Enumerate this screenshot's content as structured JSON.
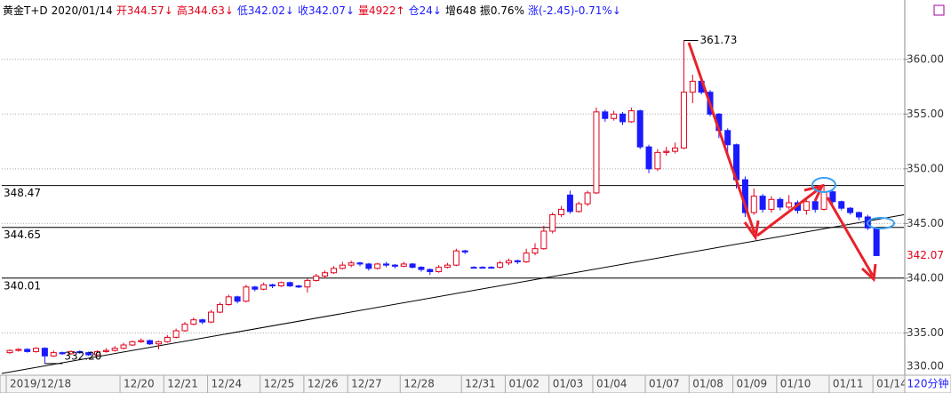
{
  "chart_data": {
    "type": "candlestick",
    "header": [
      {
        "text": "黄金T+D",
        "color": "#000000"
      },
      {
        "text": "2020/01/14",
        "color": "#000000"
      },
      {
        "text": "开344.57↓",
        "color": "#e0001a"
      },
      {
        "text": "高344.63↓",
        "color": "#e0001a"
      },
      {
        "text": "低342.02↓",
        "color": "#1a1aff"
      },
      {
        "text": "收342.07↓",
        "color": "#1a1aff"
      },
      {
        "text": "量4922↑",
        "color": "#e0001a"
      },
      {
        "text": "仓24↓",
        "color": "#1a1aff"
      },
      {
        "text": "增648",
        "color": "#000000"
      },
      {
        "text": "振0.76%",
        "color": "#000000"
      },
      {
        "text": "涨(-2.45)-0.71%↓",
        "color": "#1a1aff"
      }
    ],
    "period": "120分钟",
    "up_color": "#e0001a",
    "down_color": "#1a1aff",
    "categories": [
      "2019/12/18",
      null,
      null,
      null,
      null,
      null,
      null,
      null,
      null,
      null,
      null,
      null,
      null,
      "12/20",
      null,
      null,
      null,
      null,
      "12/21",
      null,
      null,
      null,
      null,
      "12/24",
      null,
      null,
      null,
      null,
      null,
      "12/25",
      null,
      null,
      null,
      null,
      "12/26",
      null,
      null,
      null,
      null,
      "12/27",
      null,
      null,
      null,
      null,
      null,
      "12/28",
      null,
      null,
      null,
      null,
      null,
      null,
      "12/31",
      null,
      null,
      null,
      null,
      "01/02",
      null,
      null,
      null,
      null,
      "01/03",
      null,
      null,
      null,
      null,
      "01/04",
      null,
      null,
      null,
      null,
      null,
      "01/07",
      null,
      null,
      null,
      null,
      "01/08",
      null,
      null,
      null,
      null,
      "01/09",
      null,
      null,
      null,
      null,
      "01/10",
      null,
      null,
      null,
      null,
      null,
      "01/11",
      null,
      null,
      null,
      null,
      "01/14"
    ],
    "open": [
      333.2,
      333.4,
      333.5,
      333.3,
      333.6,
      332.9,
      333.2,
      333.1,
      333.3,
      333.2,
      333.0,
      333.3,
      333.4,
      333.6,
      333.9,
      334.2,
      334.3,
      334.0,
      334.2,
      334.6,
      335.2,
      335.8,
      336.2,
      336.0,
      336.9,
      337.6,
      338.3,
      337.9,
      339.2,
      339.0,
      339.4,
      339.3,
      339.6,
      339.3,
      339.2,
      339.8,
      340.2,
      340.5,
      340.9,
      341.2,
      341.4,
      341.3,
      340.9,
      341.3,
      341.2,
      341.1,
      341.3,
      341.0,
      340.8,
      340.6,
      341.0,
      341.2,
      342.5,
      341.0,
      341.0,
      341.0,
      341.0,
      341.4,
      341.6,
      341.5,
      342.3,
      342.7,
      344.3,
      345.8,
      347.6,
      346.1,
      346.8,
      347.8,
      355.2,
      354.6,
      355.0,
      354.3,
      355.3,
      352.0,
      350.0,
      351.5,
      351.6,
      351.9,
      357.0,
      358.0,
      357.0,
      355.0,
      353.5,
      352.2,
      349.0,
      346.0,
      347.5,
      346.3,
      347.2,
      346.5,
      346.9,
      346.2,
      347.0,
      346.3,
      347.9,
      347.0,
      346.4,
      346.0,
      345.6,
      344.57
    ],
    "high": [
      333.5,
      333.6,
      333.6,
      333.7,
      333.7,
      333.4,
      333.3,
      333.4,
      333.4,
      333.3,
      333.4,
      333.6,
      333.8,
      334.1,
      334.3,
      334.5,
      334.4,
      334.3,
      334.8,
      335.4,
      336.0,
      336.4,
      336.3,
      337.1,
      337.8,
      338.5,
      338.4,
      339.4,
      339.3,
      339.6,
      339.5,
      339.7,
      339.7,
      339.4,
      340.0,
      340.4,
      340.7,
      341.1,
      341.5,
      341.6,
      341.5,
      341.4,
      341.4,
      341.5,
      341.3,
      341.5,
      341.4,
      341.1,
      340.9,
      341.2,
      341.4,
      342.7,
      342.6,
      341.1,
      341.1,
      341.1,
      341.6,
      341.8,
      341.7,
      342.7,
      343.2,
      344.8,
      346.0,
      346.6,
      348.0,
      347.0,
      348.0,
      355.6,
      355.4,
      355.3,
      355.2,
      355.6,
      355.4,
      352.2,
      351.8,
      352.0,
      352.4,
      361.73,
      358.6,
      358.3,
      357.2,
      355.1,
      353.7,
      352.3,
      349.3,
      348.2,
      347.7,
      347.5,
      347.4,
      347.6,
      347.1,
      347.3,
      347.2,
      348.5,
      348.0,
      347.1,
      346.5,
      346.1,
      345.8,
      344.63
    ],
    "low": [
      333.1,
      333.3,
      333.2,
      333.2,
      332.2,
      332.8,
      333.0,
      333.0,
      333.1,
      332.9,
      332.9,
      333.2,
      333.3,
      333.5,
      333.8,
      334.1,
      333.9,
      333.5,
      334.1,
      334.5,
      335.1,
      335.7,
      335.8,
      335.9,
      336.8,
      337.5,
      337.7,
      337.8,
      338.8,
      338.9,
      339.1,
      339.2,
      339.2,
      339.1,
      338.7,
      339.7,
      340.0,
      340.4,
      340.8,
      341.0,
      341.1,
      340.7,
      340.8,
      341.0,
      340.9,
      341.0,
      340.9,
      340.6,
      340.3,
      340.5,
      340.9,
      341.1,
      342.2,
      340.9,
      340.9,
      340.9,
      340.9,
      341.2,
      341.3,
      341.4,
      342.1,
      342.6,
      344.1,
      345.6,
      345.9,
      346.0,
      346.6,
      347.7,
      354.3,
      354.4,
      354.0,
      354.2,
      351.8,
      349.6,
      349.8,
      351.2,
      351.4,
      351.8,
      356.0,
      356.8,
      354.8,
      352.8,
      351.5,
      348.2,
      345.6,
      345.8,
      346.0,
      346.0,
      346.2,
      346.3,
      345.9,
      345.8,
      346.0,
      346.2,
      346.8,
      346.2,
      345.8,
      345.3,
      344.4,
      342.02
    ],
    "close": [
      333.4,
      333.5,
      333.3,
      333.6,
      332.9,
      333.2,
      333.1,
      333.3,
      333.2,
      333.0,
      333.3,
      333.4,
      333.6,
      333.9,
      334.2,
      334.3,
      334.0,
      334.2,
      334.6,
      335.2,
      335.8,
      336.2,
      336.0,
      336.9,
      337.6,
      338.3,
      337.9,
      339.2,
      339.0,
      339.4,
      339.3,
      339.6,
      339.3,
      339.2,
      339.8,
      340.2,
      340.5,
      340.9,
      341.2,
      341.4,
      341.3,
      340.9,
      341.3,
      341.2,
      341.1,
      341.3,
      341.0,
      340.8,
      340.6,
      341.0,
      341.2,
      342.5,
      342.4,
      341.0,
      341.0,
      341.0,
      341.4,
      341.6,
      341.5,
      342.3,
      342.7,
      344.3,
      345.8,
      346.3,
      346.1,
      346.8,
      347.8,
      355.2,
      354.6,
      355.0,
      354.3,
      355.3,
      352.0,
      350.0,
      351.5,
      351.6,
      351.9,
      357.0,
      358.0,
      357.0,
      355.0,
      353.5,
      352.2,
      349.0,
      346.0,
      347.5,
      346.3,
      347.2,
      346.5,
      346.9,
      346.2,
      347.0,
      346.3,
      347.9,
      347.0,
      346.4,
      346.0,
      345.6,
      344.6,
      342.07
    ],
    "ylim": [
      330,
      363.8
    ],
    "yticks": [
      {
        "value": 330,
        "label": "330.00"
      },
      {
        "value": 335,
        "label": "335.00"
      },
      {
        "value": 340,
        "label": "340.00"
      },
      {
        "value": 345,
        "label": "345.00"
      },
      {
        "value": 350,
        "label": "350.00"
      },
      {
        "value": 355,
        "label": "355.00"
      },
      {
        "value": 360,
        "label": "360.00"
      }
    ],
    "grid": true,
    "hlines": [
      348.47,
      344.65,
      340.01
    ],
    "max_label": 361.73,
    "min_label": {
      "value": 332.2,
      "label": "332.20"
    },
    "last_price": 342.07,
    "trendline": [
      331.3,
      345.8
    ]
  }
}
